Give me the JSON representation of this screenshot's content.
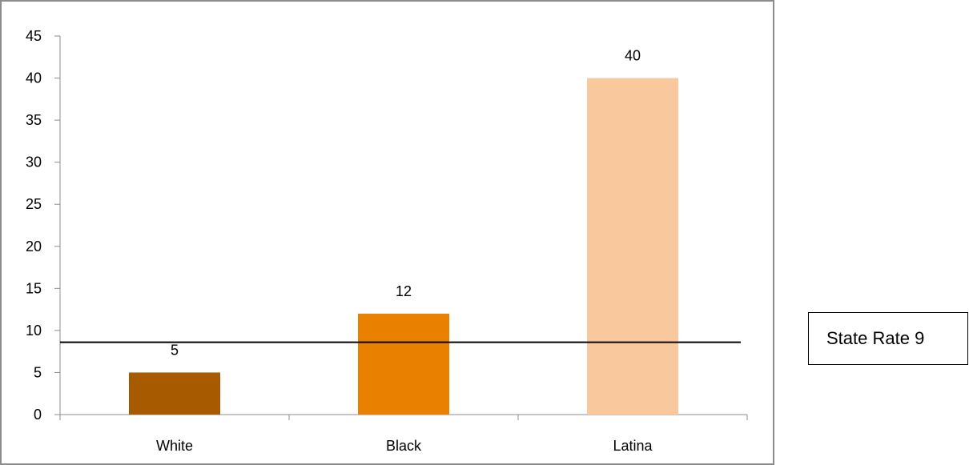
{
  "chart_data": {
    "type": "bar",
    "categories": [
      "White",
      "Black",
      "Latina"
    ],
    "values": [
      5,
      12,
      40
    ],
    "data_labels": [
      "5",
      "12",
      "40"
    ],
    "colors": [
      "#a85a00",
      "#ea8000",
      "#fac89d"
    ],
    "ylim": [
      0,
      45
    ],
    "yticks": [
      0,
      5,
      10,
      15,
      20,
      25,
      30,
      35,
      40,
      45
    ],
    "reference_line": {
      "value": 8.6
    },
    "grid": false,
    "annotation": "State Rate 9"
  }
}
